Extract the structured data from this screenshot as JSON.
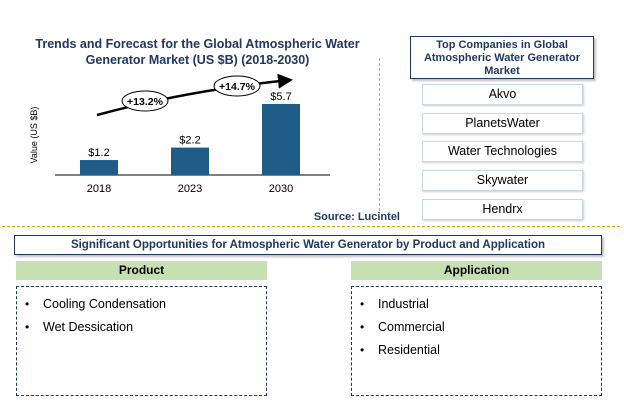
{
  "chart_data": {
    "type": "bar",
    "title": "Trends and Forecast for the Global  Atmospheric Water Generator Market (US $B) (2018-2030)",
    "ylabel": "Value (US $B)",
    "xlabel": "",
    "categories": [
      "2018",
      "2023",
      "2030"
    ],
    "values": [
      1.2,
      2.2,
      5.7
    ],
    "data_labels": [
      "$1.2",
      "$2.2",
      "$5.7"
    ],
    "growth_annotations": [
      "+13.2%",
      "+14.7%"
    ],
    "bar_color": "#1f5c87",
    "grid": false,
    "legend": "none"
  },
  "source": "Source: Lucintel",
  "companies": {
    "title": "Top Companies in Global Atmospheric Water Generator Market",
    "items": [
      "Akvo",
      "PlanetsWater",
      "Water Technologies",
      "Skywater",
      "Hendrx"
    ]
  },
  "opportunities": {
    "title": "Significant Opportunities for Atmospheric Water Generator by Product  and Application",
    "product": {
      "header": "Product",
      "items": [
        "Cooling Condensation",
        "Wet Dessication"
      ]
    },
    "application": {
      "header": "Application",
      "items": [
        "Industrial",
        "Commercial",
        "Residential"
      ]
    }
  }
}
